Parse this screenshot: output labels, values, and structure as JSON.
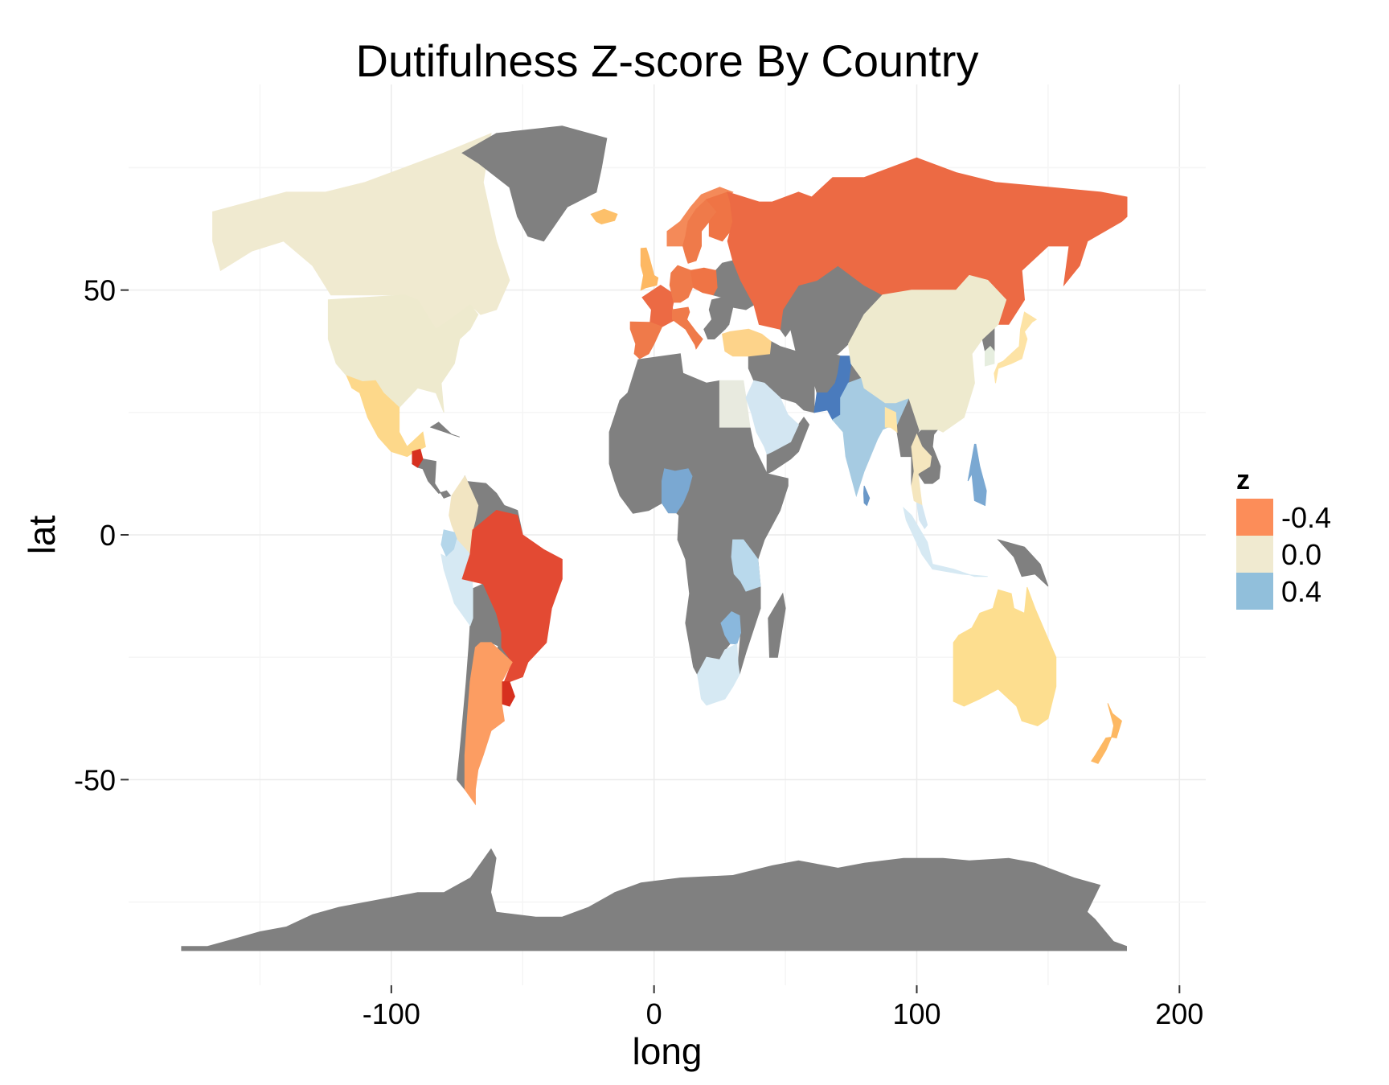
{
  "chart_data": {
    "type": "choropleth",
    "title": "Dutifulness Z-score By Country",
    "xlabel": "long",
    "ylabel": "lat",
    "xlim": [
      -200,
      210
    ],
    "ylim": [
      -92,
      92
    ],
    "x_ticks": [
      -100,
      0,
      100,
      200
    ],
    "y_ticks": [
      -50,
      0,
      50
    ],
    "x_tick_labels": [
      "-100",
      "0",
      "100",
      "200"
    ],
    "y_tick_labels": [
      "-50",
      "0",
      "50"
    ],
    "grid": true,
    "legend": {
      "title": "z",
      "position": "right",
      "entries": [
        {
          "label": "-0.4",
          "value": -0.4,
          "color": "#fc8d59"
        },
        {
          "label": "0.0",
          "value": 0.0,
          "color": "#f0ead0"
        },
        {
          "label": "0.4",
          "value": 0.4,
          "color": "#91bfdb"
        }
      ]
    },
    "na_color": "#808080",
    "regions": [
      {
        "region": "Canada",
        "z": 0.0,
        "color": "#f0ead0"
      },
      {
        "region": "USA",
        "z": 0.0,
        "color": "#eeeace"
      },
      {
        "region": "Mexico",
        "z": -0.12,
        "color": "#fdd88a"
      },
      {
        "region": "Guatemala",
        "z": -0.6,
        "color": "#d7301f"
      },
      {
        "region": "Colombia",
        "z": -0.02,
        "color": "#f2e5c2"
      },
      {
        "region": "Ecuador",
        "z": 0.28,
        "color": "#b4d6ea"
      },
      {
        "region": "Peru",
        "z": 0.18,
        "color": "#d6e9f3"
      },
      {
        "region": "Brazil",
        "z": -0.58,
        "color": "#e34a33"
      },
      {
        "region": "Uruguay",
        "z": -0.6,
        "color": "#d7301f"
      },
      {
        "region": "Argentina",
        "z": -0.33,
        "color": "#fc9d62"
      },
      {
        "region": "Greenland",
        "z": null,
        "color": "#808080"
      },
      {
        "region": "Iceland",
        "z": -0.2,
        "color": "#fdc06a"
      },
      {
        "region": "United Kingdom",
        "z": -0.25,
        "color": "#fdb863"
      },
      {
        "region": "Norway",
        "z": -0.35,
        "color": "#f48a59"
      },
      {
        "region": "Sweden",
        "z": -0.45,
        "color": "#ef7a4a"
      },
      {
        "region": "Finland",
        "z": -0.45,
        "color": "#ef7445"
      },
      {
        "region": "France",
        "z": -0.48,
        "color": "#ec6a44"
      },
      {
        "region": "Spain",
        "z": -0.45,
        "color": "#ef7a4a"
      },
      {
        "region": "Italy",
        "z": -0.45,
        "color": "#ef7a4a"
      },
      {
        "region": "Germany",
        "z": -0.45,
        "color": "#ef7a4a"
      },
      {
        "region": "Poland",
        "z": -0.45,
        "color": "#ef7445"
      },
      {
        "region": "Russia",
        "z": -0.48,
        "color": "#ec6a44"
      },
      {
        "region": "Turkey",
        "z": -0.15,
        "color": "#fdd38a"
      },
      {
        "region": "Egypt",
        "z": 0.02,
        "color": "#e8eadf"
      },
      {
        "region": "Saudi Arabia",
        "z": 0.15,
        "color": "#d3e6f2"
      },
      {
        "region": "Pakistan",
        "z": 0.62,
        "color": "#4a7bbd"
      },
      {
        "region": "India",
        "z": 0.35,
        "color": "#a6cbe2"
      },
      {
        "region": "Sri Lanka",
        "z": 0.5,
        "color": "#6a98c8"
      },
      {
        "region": "Bangladesh",
        "z": -0.1,
        "color": "#fde5a8"
      },
      {
        "region": "China",
        "z": 0.0,
        "color": "#eeeace"
      },
      {
        "region": "Japan",
        "z": -0.1,
        "color": "#fde3a5"
      },
      {
        "region": "South Korea",
        "z": 0.05,
        "color": "#e6eedf"
      },
      {
        "region": "Thailand",
        "z": -0.05,
        "color": "#f5e6be"
      },
      {
        "region": "Philippines",
        "z": 0.45,
        "color": "#7aa8d2"
      },
      {
        "region": "Malaysia",
        "z": 0.15,
        "color": "#d3e6f2"
      },
      {
        "region": "Indonesia",
        "z": 0.15,
        "color": "#d6e9f3"
      },
      {
        "region": "Nigeria",
        "z": 0.45,
        "color": "#7aa8d2"
      },
      {
        "region": "Tanzania",
        "z": 0.25,
        "color": "#b9d9ec"
      },
      {
        "region": "Zimbabwe",
        "z": 0.38,
        "color": "#8ab8dd"
      },
      {
        "region": "South Africa",
        "z": 0.12,
        "color": "#d6e9f3"
      },
      {
        "region": "Australia",
        "z": -0.12,
        "color": "#fdde8f"
      },
      {
        "region": "New Zealand",
        "z": -0.25,
        "color": "#fdb863"
      }
    ]
  }
}
